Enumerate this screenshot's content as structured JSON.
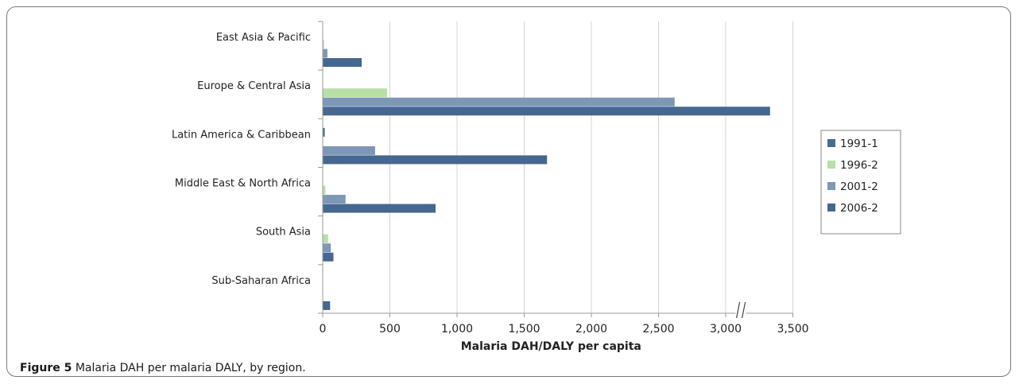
{
  "caption": {
    "label": "Figure 5",
    "text": "Malaria DAH per malaria DALY, by region."
  },
  "colors": {
    "s1991": "#4a6b8f",
    "s1996": "#b7dfa7",
    "s2001": "#7d97b6",
    "s2006": "#456790",
    "grid": "#d4d4d4",
    "axis": "#9a9a9a"
  },
  "chart_data": {
    "type": "bar",
    "orientation": "horizontal",
    "xlabel": "Malaria  DAH/DALY per capita",
    "ylabel": "",
    "xlim": [
      0,
      3500
    ],
    "xticks": [
      0,
      500,
      1000,
      1500,
      2000,
      2500,
      3000,
      3500
    ],
    "xtick_labels": [
      "0",
      "500",
      "1,000",
      "1,500",
      "2,000",
      "2,500",
      "3,000",
      "3,500"
    ],
    "axis_break": "near 3,100",
    "grid": true,
    "legend_position": "right",
    "categories": [
      "East Asia & Pacific",
      "Europe & Central Asia",
      "Latin America & Caribbean",
      "Middle East & North Africa",
      "South Asia",
      "Sub-Saharan Africa"
    ],
    "series": [
      {
        "name": "1991-1",
        "color": "#4a6b8f",
        "values": [
          0,
          0,
          15,
          0,
          0,
          0
        ]
      },
      {
        "name": "1996-2",
        "color": "#b7dfa7",
        "values": [
          10,
          480,
          0,
          20,
          40,
          0
        ]
      },
      {
        "name": "2001-2",
        "color": "#7d97b6",
        "values": [
          35,
          2620,
          390,
          170,
          60,
          0
        ]
      },
      {
        "name": "2006-2",
        "color": "#456790",
        "values": [
          290,
          3330,
          1670,
          840,
          80,
          55
        ]
      }
    ]
  }
}
